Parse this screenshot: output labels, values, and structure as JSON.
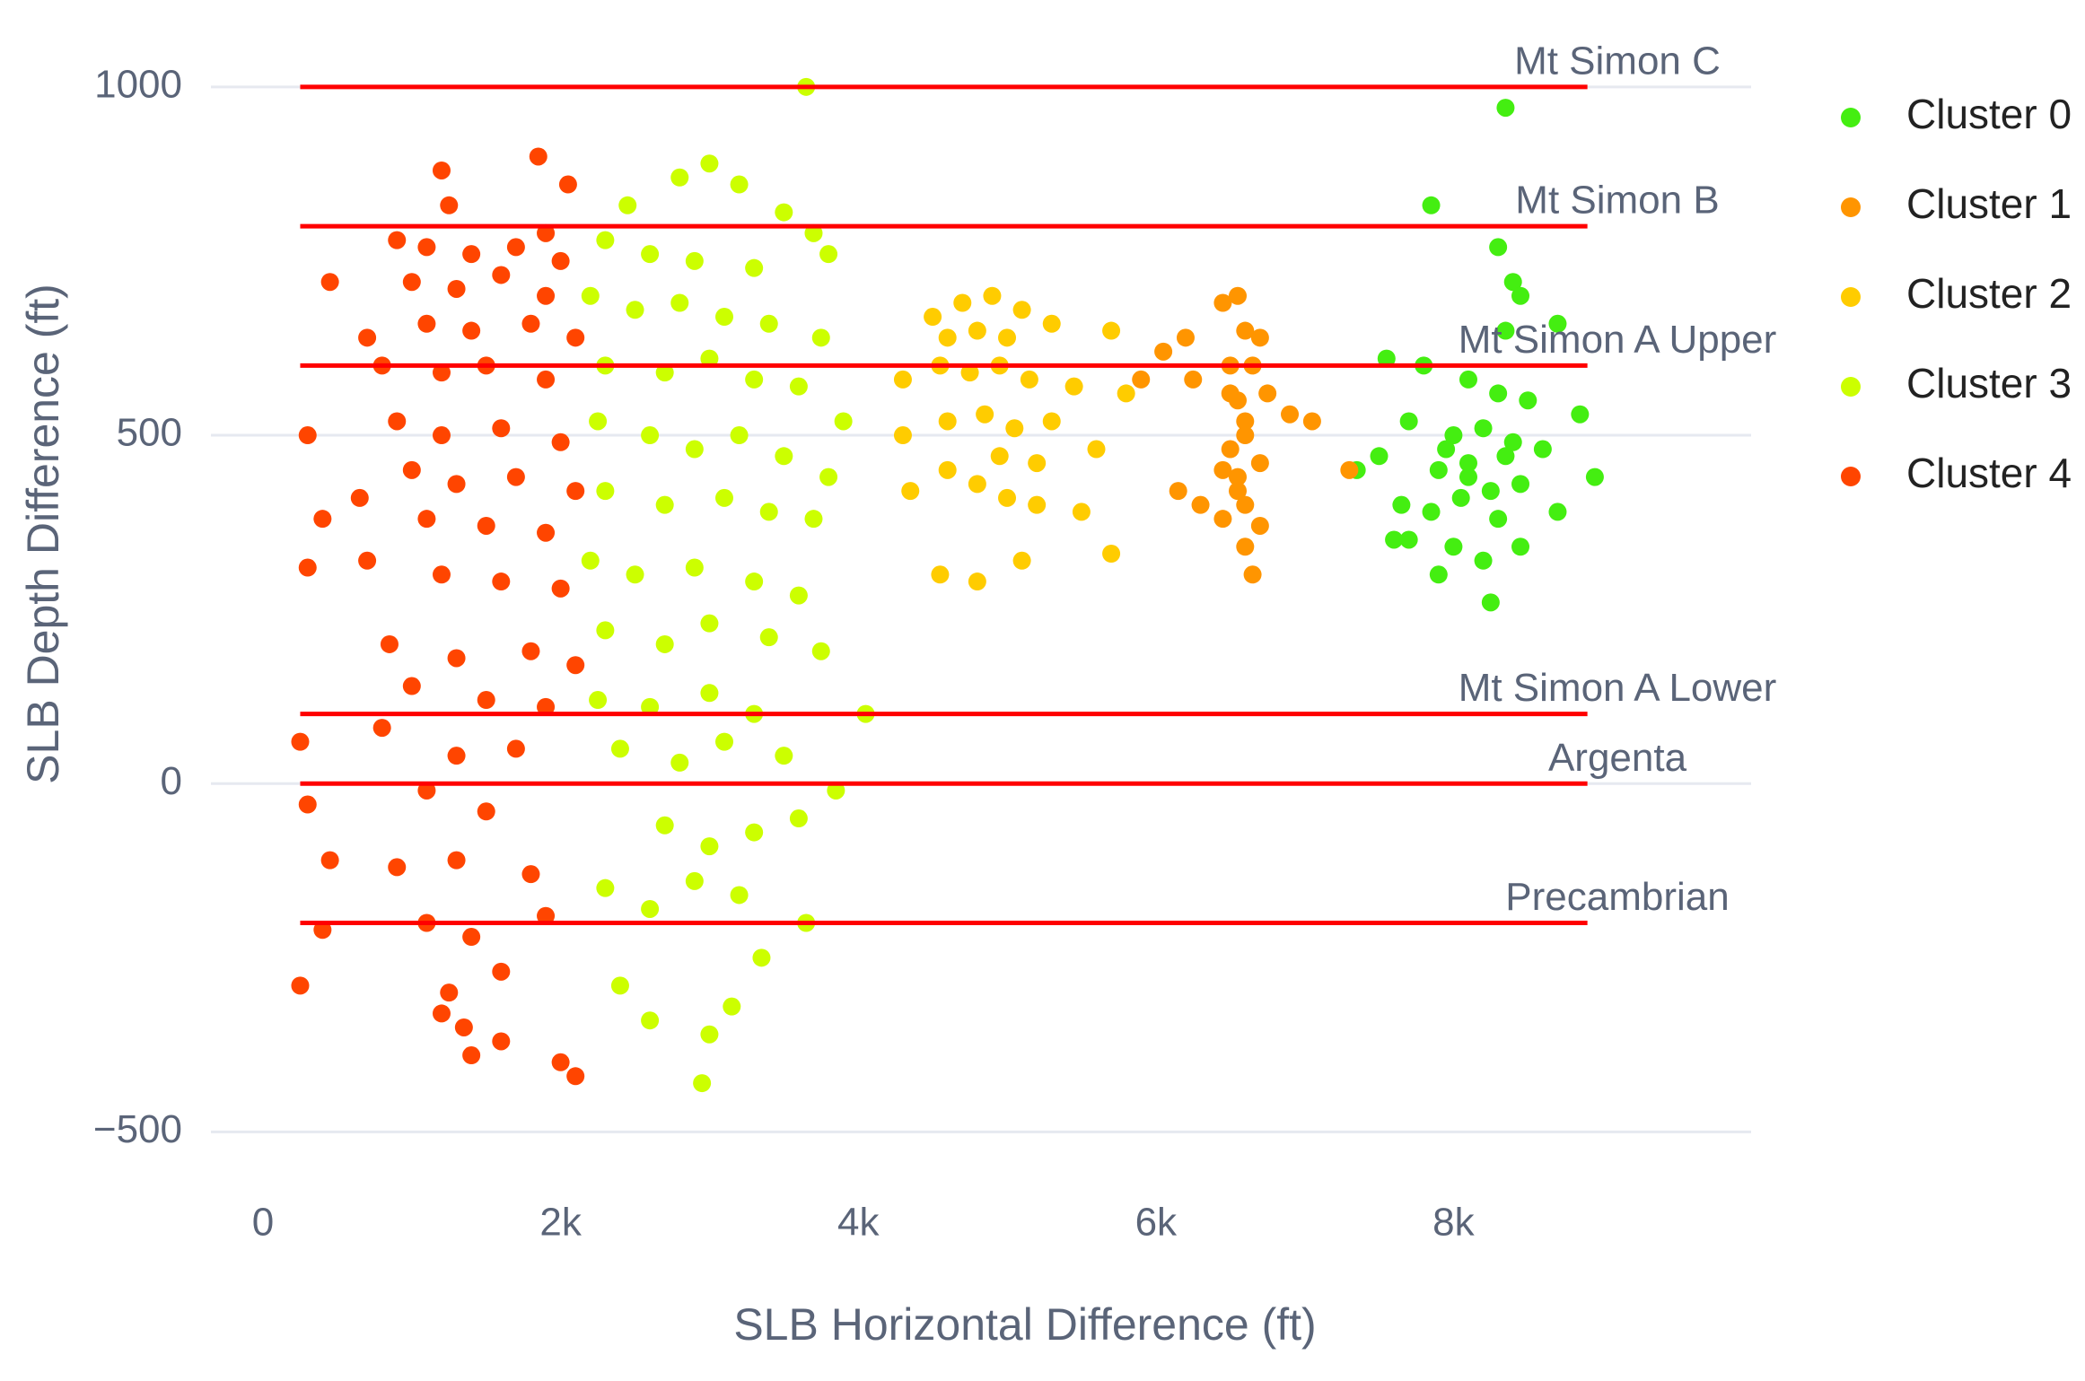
{
  "chart_data": {
    "type": "scatter",
    "x_label": "SLB Horizontal Difference (ft)",
    "y_label": "SLB Depth Difference (ft)",
    "xlim": [
      -350,
      10000
    ],
    "ylim": [
      -560,
      1050
    ],
    "xticks": [
      0,
      {
        "value": 2000,
        "label": "2k"
      },
      {
        "value": 4000,
        "label": "4k"
      },
      {
        "value": 6000,
        "label": "6k"
      },
      {
        "value": 8000,
        "label": "8k"
      }
    ],
    "yticks": [
      {
        "value": -500,
        "label": "−500"
      },
      0,
      500,
      1000
    ],
    "grid": "y",
    "legend": "right",
    "line_color": "#ff0000",
    "line_x": [
      250,
      8900
    ],
    "lines": [
      {
        "label": "Mt Simon C",
        "y": 1000
      },
      {
        "label": "Mt Simon B",
        "y": 800
      },
      {
        "label": "Mt Simon A Upper",
        "y": 600
      },
      {
        "label": "Mt Simon A Lower",
        "y": 100
      },
      {
        "label": "Argenta",
        "y": 0
      },
      {
        "label": "Precambrian",
        "y": -200
      }
    ],
    "series": [
      {
        "name": "Cluster 0",
        "color": "#44ee11",
        "x": [
          8350,
          7850,
          8300,
          8400,
          8450,
          8350,
          8700,
          7550,
          7800,
          8100,
          8300,
          8500,
          8850,
          7700,
          8000,
          8200,
          8400,
          8600,
          7350,
          7500,
          7900,
          8100,
          8250,
          8450,
          8950,
          7650,
          7850,
          8050,
          8300,
          8700,
          7700,
          8000,
          8450,
          7900,
          8200,
          7600,
          8250,
          8100,
          7950,
          8350
        ],
        "values": [
          970,
          830,
          770,
          720,
          700,
          650,
          660,
          610,
          600,
          580,
          560,
          550,
          530,
          520,
          500,
          510,
          490,
          480,
          450,
          470,
          450,
          440,
          420,
          430,
          440,
          400,
          390,
          410,
          380,
          390,
          350,
          340,
          340,
          300,
          320,
          350,
          260,
          460,
          480,
          470
        ]
      },
      {
        "name": "Cluster 1",
        "color": "#ff9500",
        "x": [
          6450,
          6550,
          6600,
          6700,
          6500,
          6650,
          6200,
          6900,
          7050,
          5900,
          6050,
          6550,
          6600,
          6500,
          6700,
          6550,
          6600,
          6450,
          6700,
          6600,
          6650,
          6150,
          6300,
          7300,
          6500,
          6600,
          6550,
          6450,
          6250,
          6750
        ],
        "values": [
          690,
          700,
          650,
          640,
          600,
          600,
          640,
          530,
          520,
          580,
          620,
          550,
          500,
          480,
          460,
          420,
          400,
          380,
          370,
          340,
          300,
          420,
          400,
          450,
          560,
          520,
          440,
          450,
          580,
          560
        ]
      },
      {
        "name": "Cluster 2",
        "color": "#ffcc00",
        "x": [
          4500,
          4700,
          4900,
          5100,
          4600,
          4800,
          5000,
          5300,
          5700,
          4300,
          4550,
          4750,
          4950,
          5150,
          5450,
          5800,
          4300,
          4600,
          4850,
          5050,
          5300,
          5600,
          4350,
          4600,
          4800,
          5000,
          5200,
          5500,
          4550,
          4800,
          5100,
          5700,
          4950,
          5200
        ],
        "values": [
          670,
          690,
          700,
          680,
          640,
          650,
          640,
          660,
          650,
          580,
          600,
          590,
          600,
          580,
          570,
          560,
          500,
          520,
          530,
          510,
          520,
          480,
          420,
          450,
          430,
          410,
          400,
          390,
          300,
          290,
          320,
          330,
          470,
          460
        ]
      },
      {
        "name": "Cluster 3",
        "color": "#ccff00",
        "x": [
          3650,
          2800,
          3000,
          3200,
          2450,
          3500,
          3700,
          2300,
          2600,
          2900,
          3300,
          3800,
          2200,
          2500,
          2800,
          3100,
          3400,
          3750,
          2300,
          2700,
          3000,
          3300,
          3600,
          3900,
          2250,
          2600,
          2900,
          3200,
          3500,
          3800,
          2300,
          2700,
          3100,
          3400,
          3700,
          2200,
          2500,
          2900,
          3300,
          3600,
          2300,
          2700,
          3000,
          3400,
          3750,
          2250,
          2600,
          3000,
          3300,
          4050,
          2400,
          2800,
          3100,
          3500,
          3850,
          2700,
          3000,
          3300,
          3600,
          2300,
          2600,
          2900,
          3200,
          3650,
          2400,
          2600,
          3000,
          3150,
          2950,
          3350
        ],
        "values": [
          1000,
          870,
          890,
          860,
          830,
          820,
          790,
          780,
          760,
          750,
          740,
          760,
          700,
          680,
          690,
          670,
          660,
          640,
          600,
          590,
          610,
          580,
          570,
          520,
          520,
          500,
          480,
          500,
          470,
          440,
          420,
          400,
          410,
          390,
          380,
          320,
          300,
          310,
          290,
          270,
          220,
          200,
          230,
          210,
          190,
          120,
          110,
          130,
          100,
          100,
          50,
          30,
          60,
          40,
          -10,
          -60,
          -90,
          -70,
          -50,
          -150,
          -180,
          -140,
          -160,
          -200,
          -290,
          -340,
          -360,
          -320,
          -430,
          -250
        ]
      },
      {
        "name": "Cluster 4",
        "color": "#ff4500",
        "x": [
          1850,
          1200,
          2050,
          1250,
          1900,
          900,
          1100,
          1400,
          1700,
          2000,
          450,
          1000,
          1300,
          1600,
          1900,
          700,
          1100,
          1400,
          1800,
          2100,
          800,
          1200,
          1500,
          1900,
          300,
          900,
          1200,
          1600,
          2000,
          1000,
          1300,
          1700,
          2100,
          650,
          400,
          1100,
          1500,
          1900,
          300,
          700,
          1200,
          1600,
          2000,
          850,
          1300,
          1800,
          2100,
          1000,
          1500,
          1900,
          250,
          800,
          1300,
          1700,
          300,
          1100,
          1500,
          450,
          900,
          1300,
          1800,
          1100,
          1400,
          1900,
          400,
          250,
          1250,
          1600,
          1350,
          1600,
          1400,
          2000,
          2100,
          1200
        ],
        "values": [
          900,
          880,
          860,
          830,
          790,
          780,
          770,
          760,
          770,
          750,
          720,
          720,
          710,
          730,
          700,
          640,
          660,
          650,
          660,
          640,
          600,
          590,
          600,
          580,
          500,
          520,
          500,
          510,
          490,
          450,
          430,
          440,
          420,
          410,
          380,
          380,
          370,
          360,
          310,
          320,
          300,
          290,
          280,
          200,
          180,
          190,
          170,
          140,
          120,
          110,
          60,
          80,
          40,
          50,
          -30,
          -10,
          -40,
          -110,
          -120,
          -110,
          -130,
          -200,
          -220,
          -190,
          -210,
          -290,
          -300,
          -270,
          -350,
          -370,
          -390,
          -400,
          -420,
          -330
        ]
      }
    ]
  }
}
